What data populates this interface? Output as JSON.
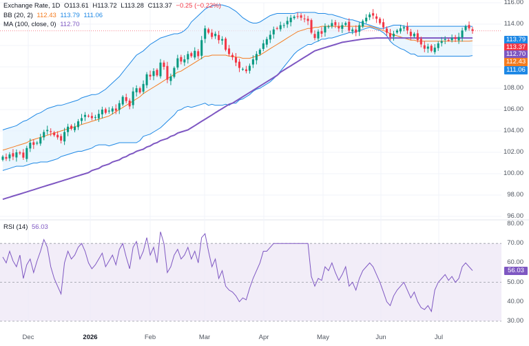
{
  "legend": {
    "main": {
      "title": "Exchange Rate, 1D",
      "open": "O113.61",
      "high": "H113.72",
      "low": "L113.28",
      "close": "C113.37",
      "change": "−0.25 (−0.22%)"
    },
    "bb": {
      "label": "BB (20, 2)",
      "mid": "112.43",
      "upper": "113.79",
      "lower": "111.06"
    },
    "ma": {
      "label": "MA (100, close, 0)",
      "value": "112.70"
    },
    "rsi": {
      "label": "RSI (14)",
      "value": "56.03"
    }
  },
  "colors": {
    "up": "#089981",
    "down": "#f23645",
    "bb_mid": "#f57c1f",
    "bb_band": "#1e88e5",
    "bb_fill": "#e3f2fd",
    "ma": "#7e57c2",
    "rsi": "#7e57c2",
    "rsi_band": "#ede7f6"
  },
  "price_axis": {
    "ticks": [
      "116.00",
      "114.00",
      "112.00",
      "110.00",
      "108.00",
      "106.00",
      "104.00",
      "102.00",
      "100.00",
      "98.00",
      "96.00"
    ]
  },
  "rsi_axis": {
    "ticks": [
      "80.00",
      "70.00",
      "60.00",
      "50.00",
      "40.00",
      "30.00"
    ]
  },
  "time_axis": [
    {
      "label": "Dec",
      "bold": false
    },
    {
      "label": "2026",
      "bold": true
    },
    {
      "label": "Feb",
      "bold": false
    },
    {
      "label": "Mar",
      "bold": false
    },
    {
      "label": "Apr",
      "bold": false
    },
    {
      "label": "May",
      "bold": false
    },
    {
      "label": "Jun",
      "bold": false
    },
    {
      "label": "Jul",
      "bold": false
    }
  ],
  "price_tags": [
    {
      "text": "113.79",
      "color": "#1e88e5"
    },
    {
      "text": "113.37",
      "color": "#f23645"
    },
    {
      "text": "112.70",
      "color": "#7e57c2"
    },
    {
      "text": "112.43",
      "color": "#f57c1f"
    },
    {
      "text": "111.06",
      "color": "#1e88e5"
    }
  ],
  "rsi_tag": {
    "text": "56.03",
    "color": "#7e57c2"
  },
  "chart_data": {
    "type": "candlestick",
    "title": "Exchange Rate, 1D",
    "price_range": [
      96,
      116
    ],
    "rsi_range": [
      30,
      80
    ],
    "rsi_levels": [
      70,
      50,
      30
    ],
    "last_close": 113.37,
    "closes": [
      101.6,
      101.4,
      101.8,
      101.6,
      102.0,
      101.9,
      101.5,
      102.4,
      102.9,
      102.7,
      102.9,
      103.4,
      103.9,
      104.1,
      103.9,
      103.6,
      103.4,
      103.1,
      103.9,
      104.4,
      104.2,
      104.4,
      104.9,
      105.2,
      105.5,
      105.4,
      105.2,
      105.3,
      105.6,
      106.0,
      105.7,
      105.9,
      106.1,
      105.9,
      106.6,
      107.2,
      106.8,
      106.3,
      107.7,
      108.0,
      107.6,
      108.4,
      109.3,
      109.1,
      109.6,
      109.2,
      110.4,
      110.0,
      108.8,
      109.1,
      109.9,
      110.8,
      110.5,
      110.7,
      111.2,
      111.0,
      111.5,
      111.0,
      112.5,
      113.6,
      113.2,
      112.8,
      113.1,
      112.5,
      112.6,
      111.6,
      111.2,
      110.9,
      110.4,
      109.9,
      109.8,
      109.6,
      110.1,
      110.7,
      111.2,
      111.6,
      112.2,
      112.6,
      113.0,
      113.5,
      113.6,
      113.9,
      113.9,
      114.3,
      114.6,
      114.7,
      114.7,
      114.6,
      114.5,
      114.3,
      113.2,
      112.7,
      113.3,
      113.1,
      113.8,
      113.8,
      114.1,
      113.9,
      113.6,
      113.9,
      114.1,
      113.4,
      113.5,
      113.2,
      113.9,
      114.3,
      114.6,
      114.9,
      114.8,
      114.5,
      114.1,
      113.7,
      113.2,
      112.8,
      113.1,
      113.4,
      113.6,
      113.7,
      113.4,
      112.9,
      113.1,
      112.5,
      112.1,
      111.7,
      111.9,
      111.5,
      111.8,
      112.2,
      112.4,
      112.6,
      112.5,
      112.7,
      112.6,
      112.8,
      113.4,
      113.8,
      113.6,
      113.37
    ],
    "bb_upper": [
      104.1,
      104.2,
      104.3,
      104.4,
      104.5,
      104.7,
      104.9,
      105.0,
      105.2,
      105.4,
      105.6,
      105.7,
      105.9,
      106.1,
      106.2,
      106.3,
      106.4,
      106.4,
      106.5,
      106.6,
      106.7,
      106.8,
      106.9,
      107.1,
      107.2,
      107.3,
      107.4,
      107.4,
      107.5,
      107.7,
      107.9,
      108.2,
      108.5,
      108.8,
      109.1,
      109.5,
      109.9,
      110.3,
      110.7,
      111.1,
      111.3,
      111.5,
      111.8,
      112.1,
      112.3,
      112.5,
      112.7,
      112.8,
      112.9,
      113.0,
      113.1,
      113.1,
      113.2,
      113.4,
      113.7,
      114.2,
      114.5,
      114.8,
      115.1,
      115.4,
      115.6,
      115.7,
      115.8,
      115.8,
      115.8,
      115.7,
      115.6,
      115.4,
      115.2,
      114.9,
      114.6,
      114.4,
      114.2,
      114.1,
      114.1,
      114.2,
      114.4,
      114.6,
      114.8,
      114.9,
      115.0,
      115.0,
      115.0,
      115.0,
      115.0,
      115.0,
      115.1,
      115.1,
      115.1,
      115.1,
      115.1,
      115.1,
      115.0,
      115.0,
      115.0,
      114.9,
      114.9,
      114.8,
      114.7,
      114.6,
      114.5,
      114.4,
      114.4,
      114.3,
      114.2,
      114.1,
      114.0,
      113.9,
      113.8,
      113.7,
      113.6,
      113.6,
      113.7,
      113.8,
      113.9,
      113.9,
      113.9,
      113.8,
      113.8,
      113.8,
      113.8,
      113.8,
      113.8,
      113.8,
      113.8,
      113.8,
      113.8,
      113.8,
      113.8,
      113.8,
      113.8,
      113.8,
      113.8,
      113.8,
      113.8,
      113.8,
      113.8,
      113.79
    ],
    "bb_mid": [
      102.2,
      102.3,
      102.4,
      102.5,
      102.6,
      102.7,
      102.8,
      102.9,
      103.1,
      103.2,
      103.3,
      103.4,
      103.5,
      103.6,
      103.7,
      103.8,
      103.9,
      104.0,
      104.1,
      104.2,
      104.3,
      104.4,
      104.5,
      104.6,
      104.7,
      104.8,
      104.9,
      105.0,
      105.1,
      105.2,
      105.3,
      105.4,
      105.6,
      105.8,
      106.0,
      106.2,
      106.4,
      106.6,
      106.8,
      107.0,
      107.2,
      107.5,
      107.7,
      107.9,
      108.1,
      108.3,
      108.5,
      108.7,
      108.9,
      109.1,
      109.3,
      109.5,
      109.6,
      109.8,
      110.0,
      110.2,
      110.4,
      110.6,
      110.8,
      111.0,
      111.0,
      111.1,
      111.1,
      111.1,
      111.1,
      111.1,
      111.0,
      111.0,
      110.9,
      110.9,
      110.8,
      110.8,
      110.8,
      110.9,
      111.0,
      111.1,
      111.3,
      111.5,
      111.7,
      111.9,
      112.1,
      112.3,
      112.5,
      112.7,
      112.9,
      113.1,
      113.3,
      113.4,
      113.5,
      113.6,
      113.6,
      113.7,
      113.7,
      113.8,
      113.8,
      113.8,
      113.8,
      113.8,
      113.8,
      113.8,
      113.8,
      113.8,
      113.8,
      113.8,
      113.8,
      113.8,
      113.8,
      113.8,
      113.7,
      113.6,
      113.5,
      113.4,
      113.3,
      113.1,
      113.0,
      112.9,
      112.8,
      112.7,
      112.6,
      112.5,
      112.5,
      112.4,
      112.4,
      112.4,
      112.4,
      112.4,
      112.4,
      112.4,
      112.4,
      112.4,
      112.4,
      112.4,
      112.4,
      112.4,
      112.4,
      112.4,
      112.4,
      112.43
    ],
    "bb_lower": [
      100.3,
      100.4,
      100.5,
      100.6,
      100.7,
      100.7,
      100.7,
      100.8,
      100.9,
      101.0,
      101.0,
      101.1,
      101.1,
      101.1,
      101.2,
      101.3,
      101.4,
      101.6,
      101.7,
      101.8,
      101.9,
      102.0,
      102.1,
      102.1,
      102.2,
      102.3,
      102.4,
      102.6,
      102.7,
      102.7,
      102.7,
      102.6,
      102.7,
      102.8,
      102.9,
      102.9,
      102.9,
      102.9,
      102.9,
      102.9,
      103.1,
      103.5,
      103.6,
      103.7,
      103.9,
      104.1,
      104.3,
      104.6,
      104.9,
      105.2,
      105.5,
      105.9,
      106.0,
      106.2,
      106.3,
      106.2,
      106.3,
      106.4,
      106.5,
      106.6,
      106.4,
      106.5,
      106.4,
      106.4,
      106.4,
      106.5,
      106.4,
      106.6,
      106.6,
      106.9,
      107.0,
      107.2,
      107.4,
      107.7,
      107.9,
      108.0,
      108.2,
      108.4,
      108.6,
      108.9,
      109.2,
      109.6,
      110.0,
      110.4,
      110.8,
      111.2,
      111.5,
      111.7,
      111.9,
      112.1,
      112.1,
      112.3,
      112.4,
      112.6,
      112.6,
      112.7,
      112.7,
      112.8,
      112.9,
      113.0,
      113.1,
      113.2,
      113.2,
      113.3,
      113.4,
      113.5,
      113.6,
      113.7,
      113.6,
      113.5,
      113.4,
      113.2,
      112.9,
      112.4,
      112.1,
      111.9,
      111.7,
      111.6,
      111.4,
      111.2,
      111.2,
      111.0,
      111.0,
      111.0,
      111.0,
      111.0,
      111.0,
      111.0,
      111.0,
      111.0,
      111.0,
      111.0,
      111.0,
      111.0,
      111.0,
      111.0,
      111.0,
      111.06
    ],
    "ma": [
      97.6,
      97.7,
      97.8,
      97.9,
      98.0,
      98.1,
      98.2,
      98.3,
      98.4,
      98.5,
      98.6,
      98.7,
      98.8,
      98.9,
      99.0,
      99.1,
      99.2,
      99.3,
      99.4,
      99.5,
      99.6,
      99.7,
      99.8,
      99.9,
      100.0,
      100.1,
      100.3,
      100.4,
      100.5,
      100.7,
      100.8,
      100.9,
      101.1,
      101.2,
      101.3,
      101.5,
      101.6,
      101.8,
      101.9,
      102.1,
      102.2,
      102.3,
      102.5,
      102.6,
      102.8,
      102.9,
      103.1,
      103.2,
      103.3,
      103.5,
      103.6,
      103.8,
      103.9,
      104.0,
      104.1,
      104.3,
      104.5,
      104.7,
      104.9,
      105.1,
      105.3,
      105.5,
      105.7,
      105.9,
      106.1,
      106.3,
      106.5,
      106.6,
      106.8,
      107.0,
      107.2,
      107.4,
      107.6,
      107.8,
      108.0,
      108.2,
      108.4,
      108.6,
      108.8,
      109.0,
      109.2,
      109.5,
      109.7,
      109.9,
      110.1,
      110.3,
      110.5,
      110.7,
      110.9,
      111.1,
      111.3,
      111.5,
      111.6,
      111.7,
      111.8,
      111.9,
      112.0,
      112.1,
      112.2,
      112.3,
      112.35,
      112.4,
      112.45,
      112.5,
      112.55,
      112.6,
      112.63,
      112.66,
      112.68,
      112.7,
      112.7,
      112.7,
      112.7,
      112.7,
      112.7,
      112.7,
      112.7,
      112.7,
      112.7,
      112.7,
      112.7,
      112.7,
      112.7,
      112.7,
      112.7,
      112.7,
      112.7,
      112.7,
      112.7,
      112.7,
      112.7,
      112.7,
      112.7,
      112.7,
      112.7,
      112.7,
      112.7,
      112.7
    ],
    "rsi": [
      63,
      60,
      66,
      61,
      58,
      64,
      52,
      59,
      62,
      55,
      61,
      66,
      72,
      68,
      58,
      52,
      48,
      44,
      60,
      66,
      62,
      64,
      68,
      70,
      66,
      60,
      57,
      59,
      62,
      65,
      58,
      61,
      64,
      59,
      67,
      70,
      63,
      57,
      68,
      71,
      62,
      66,
      73,
      64,
      68,
      60,
      76,
      70,
      55,
      58,
      64,
      67,
      62,
      64,
      68,
      62,
      66,
      60,
      73,
      75,
      66,
      58,
      62,
      52,
      56,
      48,
      46,
      45,
      43,
      40,
      42,
      41,
      47,
      52,
      56,
      60,
      66,
      66,
      68,
      70,
      70,
      70,
      70,
      70,
      70,
      70,
      70,
      70,
      70,
      70,
      53,
      48,
      52,
      51,
      58,
      56,
      60,
      55,
      51,
      54,
      58,
      48,
      50,
      46,
      52,
      56,
      58,
      60,
      58,
      54,
      50,
      45,
      40,
      38,
      43,
      46,
      48,
      50,
      46,
      42,
      45,
      40,
      37,
      36,
      38,
      35,
      46,
      50,
      52,
      54,
      51,
      53,
      50,
      52,
      58,
      60,
      58,
      56.03
    ],
    "x_labels": [
      "Dec",
      "2026",
      "Feb",
      "Mar",
      "Apr",
      "May",
      "Jun",
      "Jul"
    ]
  }
}
